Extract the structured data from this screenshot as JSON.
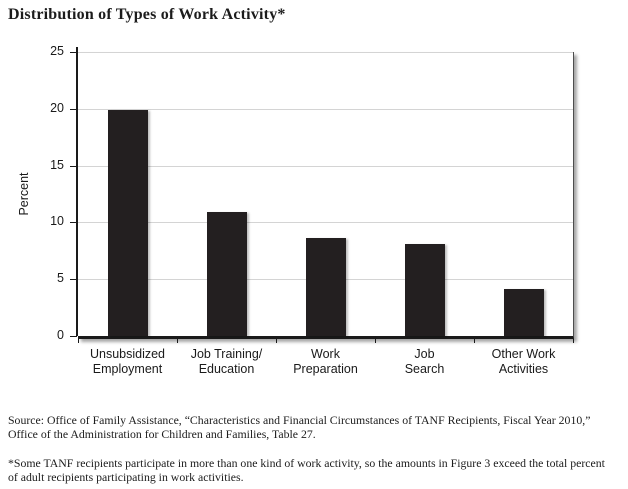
{
  "title": "Distribution of Types of Work Activity*",
  "chart_data": {
    "type": "bar",
    "title": "Distribution of Types of Work Activity*",
    "categories": [
      "Unsubsidized Employment",
      "Job Training/ Education",
      "Work Preparation",
      "Job Search",
      "Other Work Activities"
    ],
    "category_lines": [
      [
        "Unsubsidized",
        "Employment"
      ],
      [
        "Job Training/",
        "Education"
      ],
      [
        "Work",
        "Preparation"
      ],
      [
        "Job",
        "Search"
      ],
      [
        "Other Work",
        "Activities"
      ]
    ],
    "values": [
      19.9,
      10.9,
      8.6,
      8.1,
      4.1
    ],
    "xlabel": "",
    "ylabel": "Percent",
    "ylim": [
      0,
      25
    ],
    "yticks": [
      0,
      5,
      10,
      15,
      20,
      25
    ],
    "grid": true,
    "legend": false,
    "bar_color": "#231f20",
    "gridline_color": "#d4d4d4",
    "axis_color": "#1a1a1a"
  },
  "footer": {
    "source": "Source: Office of Family Assistance, “Characteristics and Financial Circumstances of TANF Recipients, Fiscal Year 2010,” Office of the Administration for Children and Families, Table 27.",
    "footnote": "*Some TANF recipients participate in more than one kind of work activity, so the amounts in Figure 3 exceed the total percent of adult recipients participating in work activities."
  }
}
